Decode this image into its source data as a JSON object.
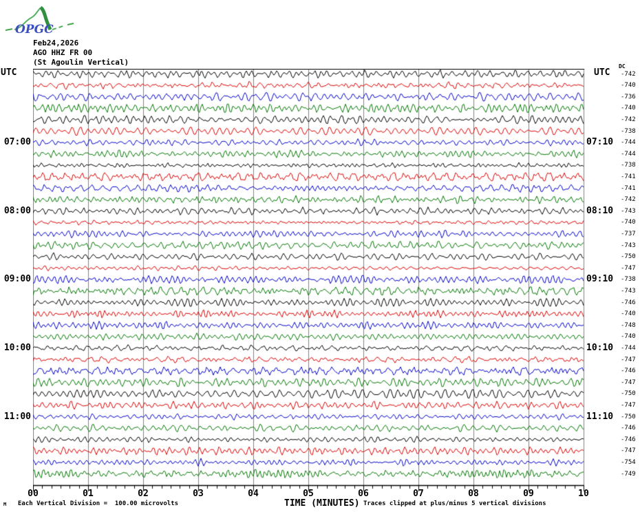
{
  "logo": {
    "text": "OPGC",
    "curve_color": "#4aa54f",
    "text_color": "#3b4fc0"
  },
  "header": {
    "date": "Feb24,2026",
    "station": "AGO HHZ FR 00",
    "location": "(St Agoulin Vertical)"
  },
  "axes": {
    "left_header": "UTC",
    "right_header": "UTC",
    "dc_header": "DC",
    "xlabel": "TIME (MINUTES)",
    "x_ticks": [
      "00",
      "01",
      "02",
      "03",
      "04",
      "05",
      "06",
      "07",
      "08",
      "09",
      "10"
    ],
    "left_labels": [
      {
        "row": 7,
        "label": "07:00"
      },
      {
        "row": 13,
        "label": "08:00"
      },
      {
        "row": 19,
        "label": "09:00"
      },
      {
        "row": 25,
        "label": "10:00"
      },
      {
        "row": 31,
        "label": "11:00"
      }
    ],
    "right_labels": [
      {
        "row": 7,
        "label": "07:10"
      },
      {
        "row": 13,
        "label": "08:10"
      },
      {
        "row": 19,
        "label": "09:10"
      },
      {
        "row": 25,
        "label": "10:10"
      },
      {
        "row": 31,
        "label": "11:10"
      }
    ]
  },
  "footer": {
    "marker": "M",
    "left": "Each Vertical Division =  100.00 microvolts",
    "right": "Traces clipped at plus/minus 5 vertical divisions"
  },
  "chart_data": {
    "type": "line",
    "subtype": "helicorder",
    "title": "AGO HHZ FR 00 (St Agoulin Vertical) Feb24,2026",
    "xlabel": "TIME (MINUTES)",
    "x_range_minutes": [
      0,
      10
    ],
    "minutes_per_line": 10,
    "vertical_division_microvolts": 100.0,
    "clip_divisions": 5,
    "grid": true,
    "trace_colors": {
      "black": "#000000",
      "red": "#dd0000",
      "blue": "#0000cc",
      "green": "#007700"
    },
    "grid_color": "#808080",
    "rows": [
      {
        "start": "06:00",
        "color": "black",
        "dc": -742
      },
      {
        "start": "06:10",
        "color": "red",
        "dc": -740
      },
      {
        "start": "06:20",
        "color": "blue",
        "dc": -736
      },
      {
        "start": "06:30",
        "color": "green",
        "dc": -740
      },
      {
        "start": "06:40",
        "color": "black",
        "dc": -742
      },
      {
        "start": "06:50",
        "color": "red",
        "dc": -738
      },
      {
        "start": "07:00",
        "color": "blue",
        "dc": -744
      },
      {
        "start": "07:10",
        "color": "green",
        "dc": -744
      },
      {
        "start": "07:20",
        "color": "black",
        "dc": -738
      },
      {
        "start": "07:30",
        "color": "red",
        "dc": -741
      },
      {
        "start": "07:40",
        "color": "blue",
        "dc": -741
      },
      {
        "start": "07:50",
        "color": "green",
        "dc": -742
      },
      {
        "start": "08:00",
        "color": "black",
        "dc": -743
      },
      {
        "start": "08:10",
        "color": "red",
        "dc": -740
      },
      {
        "start": "08:20",
        "color": "blue",
        "dc": -737
      },
      {
        "start": "08:30",
        "color": "green",
        "dc": -743
      },
      {
        "start": "08:40",
        "color": "black",
        "dc": -750
      },
      {
        "start": "08:50",
        "color": "red",
        "dc": -747
      },
      {
        "start": "09:00",
        "color": "blue",
        "dc": -738
      },
      {
        "start": "09:10",
        "color": "green",
        "dc": -743
      },
      {
        "start": "09:20",
        "color": "black",
        "dc": -746
      },
      {
        "start": "09:30",
        "color": "red",
        "dc": -740
      },
      {
        "start": "09:40",
        "color": "blue",
        "dc": -748
      },
      {
        "start": "09:50",
        "color": "green",
        "dc": -740
      },
      {
        "start": "10:00",
        "color": "black",
        "dc": -744
      },
      {
        "start": "10:10",
        "color": "red",
        "dc": -747
      },
      {
        "start": "10:20",
        "color": "blue",
        "dc": -746
      },
      {
        "start": "10:30",
        "color": "green",
        "dc": -747
      },
      {
        "start": "10:40",
        "color": "black",
        "dc": -750
      },
      {
        "start": "10:50",
        "color": "red",
        "dc": -747
      },
      {
        "start": "11:00",
        "color": "blue",
        "dc": -750
      },
      {
        "start": "11:10",
        "color": "green",
        "dc": -746
      },
      {
        "start": "11:20",
        "color": "black",
        "dc": -746
      },
      {
        "start": "11:30",
        "color": "red",
        "dc": -747
      },
      {
        "start": "11:40",
        "color": "blue",
        "dc": -754
      },
      {
        "start": "11:50",
        "color": "green",
        "dc": -749
      }
    ]
  }
}
